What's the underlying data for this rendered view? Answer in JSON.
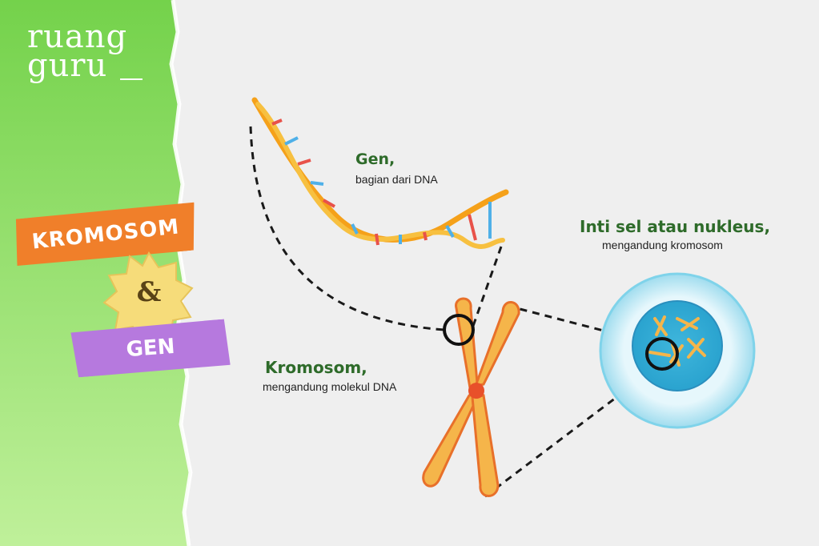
{
  "logo": {
    "line1": "ruang",
    "line2": "guru"
  },
  "tapes": {
    "top": "KROMOSOM",
    "connector": "&",
    "bottom": "GEN"
  },
  "labels": {
    "gen": {
      "title": "Gen,",
      "subtitle": "bagian dari DNA"
    },
    "nucleus": {
      "title": "Inti sel atau nukleus,",
      "subtitle": "mengandung kromosom"
    },
    "chromosome": {
      "title": "Kromosom,",
      "subtitle": "mengandung molekul DNA"
    }
  },
  "colors": {
    "green_dark": "#7ed957",
    "green_light": "#c8f0a6",
    "tape_orange": "#f07f2a",
    "tape_purple": "#b679de",
    "badge_yellow": "#f6dc7a",
    "label_green": "#2e6b2a",
    "chromosome_orange": "#f5a93a",
    "nucleus_blue": "#7fd3ea"
  }
}
